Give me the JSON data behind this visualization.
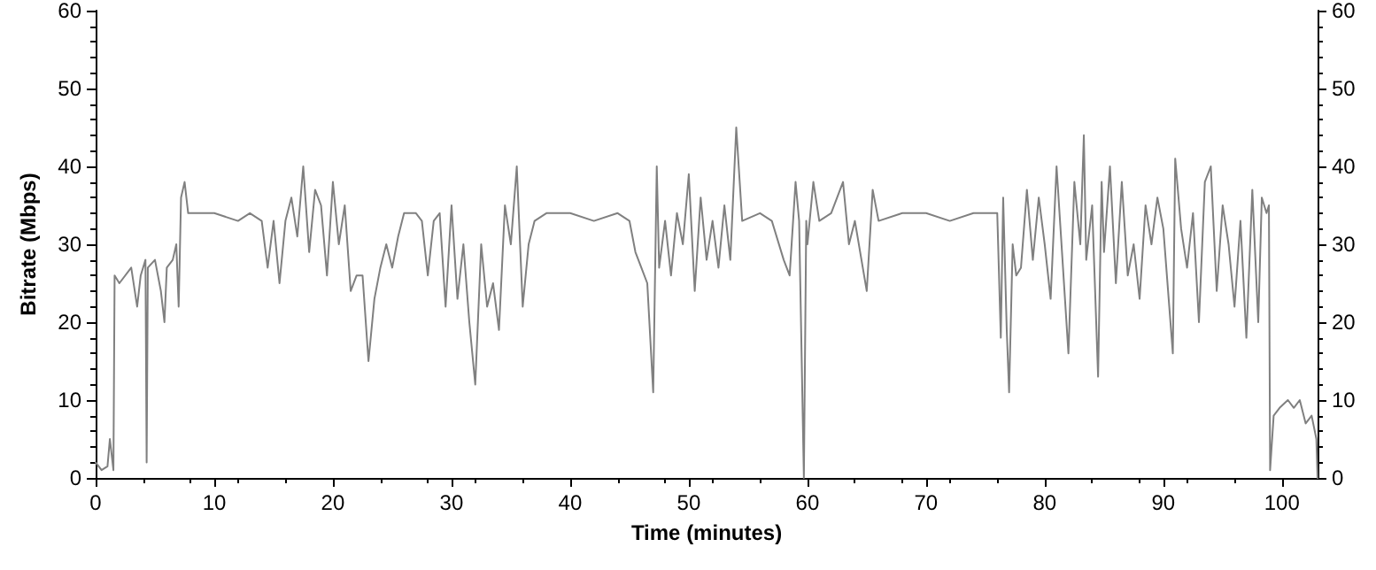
{
  "chart_data": {
    "type": "line",
    "xlabel": "Time (minutes)",
    "ylabel": "Bitrate (Mbps)",
    "xlim": [
      0,
      103
    ],
    "xticks": [
      0,
      10,
      20,
      30,
      40,
      50,
      60,
      70,
      80,
      90,
      100
    ],
    "ylim": [
      0,
      60
    ],
    "yticks": [
      0,
      10,
      20,
      30,
      40,
      50,
      60
    ],
    "y2lim": [
      0,
      60
    ],
    "y2ticks": [
      0,
      10,
      20,
      30,
      40,
      50,
      60
    ],
    "grid": false,
    "marker": "none",
    "line_style": "solid",
    "series": [
      {
        "color": "#808080",
        "x": [
          0,
          0.5,
          1,
          1.2,
          1.5,
          1.6,
          2,
          3,
          3.5,
          3.8,
          4.2,
          4.3,
          4.4,
          5,
          5.5,
          5.8,
          6,
          6.5,
          6.8,
          7,
          7.2,
          7.5,
          7.8,
          8,
          10,
          12,
          13,
          14,
          14.5,
          15,
          15.5,
          16,
          16.5,
          17,
          17.5,
          18,
          18.5,
          19,
          19.5,
          20,
          20.5,
          21,
          21.5,
          22,
          22.5,
          23,
          23.5,
          24,
          24.5,
          25,
          25.5,
          26,
          27,
          27.5,
          28,
          28.5,
          29,
          29.5,
          30,
          30.5,
          31,
          31.5,
          32,
          32.5,
          33,
          33.5,
          34,
          34.5,
          35,
          35.5,
          36,
          36.5,
          37,
          38,
          40,
          42,
          44,
          45,
          45.5,
          46,
          46.5,
          47,
          47.3,
          47.5,
          48,
          48.5,
          49,
          49.5,
          50,
          50.5,
          51,
          51.5,
          52,
          52.5,
          53,
          53.5,
          54,
          54.5,
          56,
          57,
          58,
          58.5,
          59,
          59.3,
          59.7,
          59.9,
          60,
          60.5,
          61,
          62,
          63,
          63.5,
          64,
          65,
          65.5,
          66,
          68,
          70,
          72,
          74,
          76,
          76.3,
          76.5,
          76.8,
          77,
          77.3,
          77.6,
          78,
          78.5,
          79,
          79.5,
          80,
          80.5,
          81,
          81.5,
          82,
          82.5,
          83,
          83.3,
          83.5,
          84,
          84.5,
          84.8,
          85,
          85.5,
          86,
          86.5,
          87,
          87.5,
          88,
          88.5,
          89,
          89.5,
          90,
          90.5,
          90.8,
          91,
          91.5,
          92,
          92.5,
          93,
          93.5,
          94,
          94.5,
          95,
          95.5,
          96,
          96.5,
          97,
          97.5,
          98,
          98.3,
          98.7,
          98.9,
          99,
          99.3,
          99.8,
          100.5,
          101,
          101.5,
          102,
          102.5,
          102.9,
          103
        ],
        "values": [
          2,
          1,
          1.5,
          5,
          1,
          26,
          25,
          27,
          22,
          26,
          28,
          2,
          27,
          28,
          24,
          20,
          27,
          28,
          30,
          22,
          36,
          38,
          34,
          34,
          34,
          33,
          34,
          33,
          27,
          33,
          25,
          33,
          36,
          31,
          40,
          29,
          37,
          35,
          26,
          38,
          30,
          35,
          24,
          26,
          26,
          15,
          23,
          27,
          30,
          27,
          31,
          34,
          34,
          33,
          26,
          33,
          34,
          22,
          35,
          23,
          30,
          20,
          12,
          30,
          22,
          25,
          19,
          35,
          30,
          40,
          22,
          30,
          33,
          34,
          34,
          33,
          34,
          33,
          29,
          27,
          25,
          11,
          40,
          27,
          33,
          26,
          34,
          30,
          39,
          24,
          36,
          28,
          33,
          27,
          35,
          28,
          45,
          33,
          34,
          33,
          28,
          26,
          38,
          33,
          0,
          33,
          30,
          38,
          33,
          34,
          38,
          30,
          33,
          24,
          37,
          33,
          34,
          34,
          33,
          34,
          34,
          18,
          36,
          19,
          11,
          30,
          26,
          27,
          37,
          28,
          36,
          30,
          23,
          40,
          28,
          16,
          38,
          30,
          44,
          28,
          35,
          13,
          38,
          29,
          40,
          25,
          38,
          26,
          30,
          23,
          35,
          30,
          36,
          32,
          22,
          16,
          41,
          32,
          27,
          34,
          20,
          38,
          40,
          24,
          35,
          30,
          22,
          33,
          18,
          37,
          20,
          36,
          34,
          35,
          1,
          8,
          9,
          10,
          9,
          10,
          7,
          8,
          5,
          0
        ]
      }
    ]
  }
}
